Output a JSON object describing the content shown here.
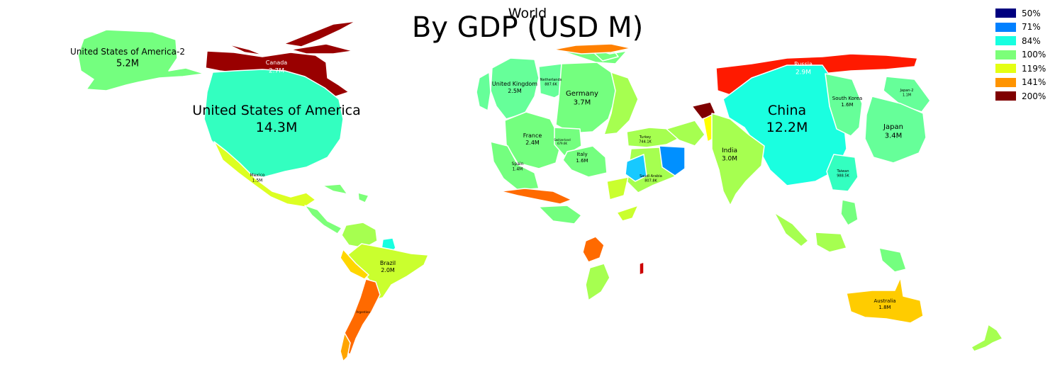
{
  "title": "By GDP (USD M)",
  "subtitle": "World",
  "legend": [
    {
      "label": "50%",
      "color": "#00007f"
    },
    {
      "label": "71%",
      "color": "#0080ff"
    },
    {
      "label": "84%",
      "color": "#17ffe0"
    },
    {
      "label": "100%",
      "color": "#7cff79"
    },
    {
      "label": "119%",
      "color": "#e4ff13"
    },
    {
      "label": "141%",
      "color": "#ff9400"
    },
    {
      "label": "200%",
      "color": "#7f0000"
    }
  ],
  "labels": {
    "usa2_name": "United States of America-2",
    "usa2_value": "5.2M",
    "canada_name": "Canada",
    "canada_value": "2.7M",
    "usa_name": "United States of America",
    "usa_value": "14.3M",
    "mexico_name": "Mexico",
    "mexico_value": "1.5M",
    "brazil_name": "Brazil",
    "brazil_value": "2.0M",
    "argentina_name": "Argentina",
    "argentina_value": "",
    "uk_name": "United Kingdom",
    "uk_value": "2.5M",
    "netherlands_name": "Netherlands",
    "netherlands_value": "887.6K",
    "germany_name": "Germany",
    "germany_value": "3.7M",
    "france_name": "France",
    "france_value": "2.4M",
    "switzerland_name": "Switzerland",
    "switzerland_value": "679.6K",
    "spain_name": "Spain",
    "spain_value": "1.4M",
    "italy_name": "Italy",
    "italy_value": "1.6M",
    "turkey_name": "Turkey",
    "turkey_value": "744.1K",
    "saudi_name": "Saudi Arabia",
    "saudi_value": "807.8K",
    "russia_name": "Russia",
    "russia_value": "2.9M",
    "china_name": "China",
    "china_value": "12.2M",
    "india_name": "India",
    "india_value": "3.0M",
    "south_korea_name": "South Korea",
    "south_korea_value": "1.6M",
    "japan2_name": "Japan-2",
    "japan2_value": "1.1M",
    "japan_name": "Japan",
    "japan_value": "3.4M",
    "taiwan_name": "Taiwan",
    "taiwan_value": "988.5K",
    "australia_name": "Australia",
    "australia_value": "1.8M"
  }
}
